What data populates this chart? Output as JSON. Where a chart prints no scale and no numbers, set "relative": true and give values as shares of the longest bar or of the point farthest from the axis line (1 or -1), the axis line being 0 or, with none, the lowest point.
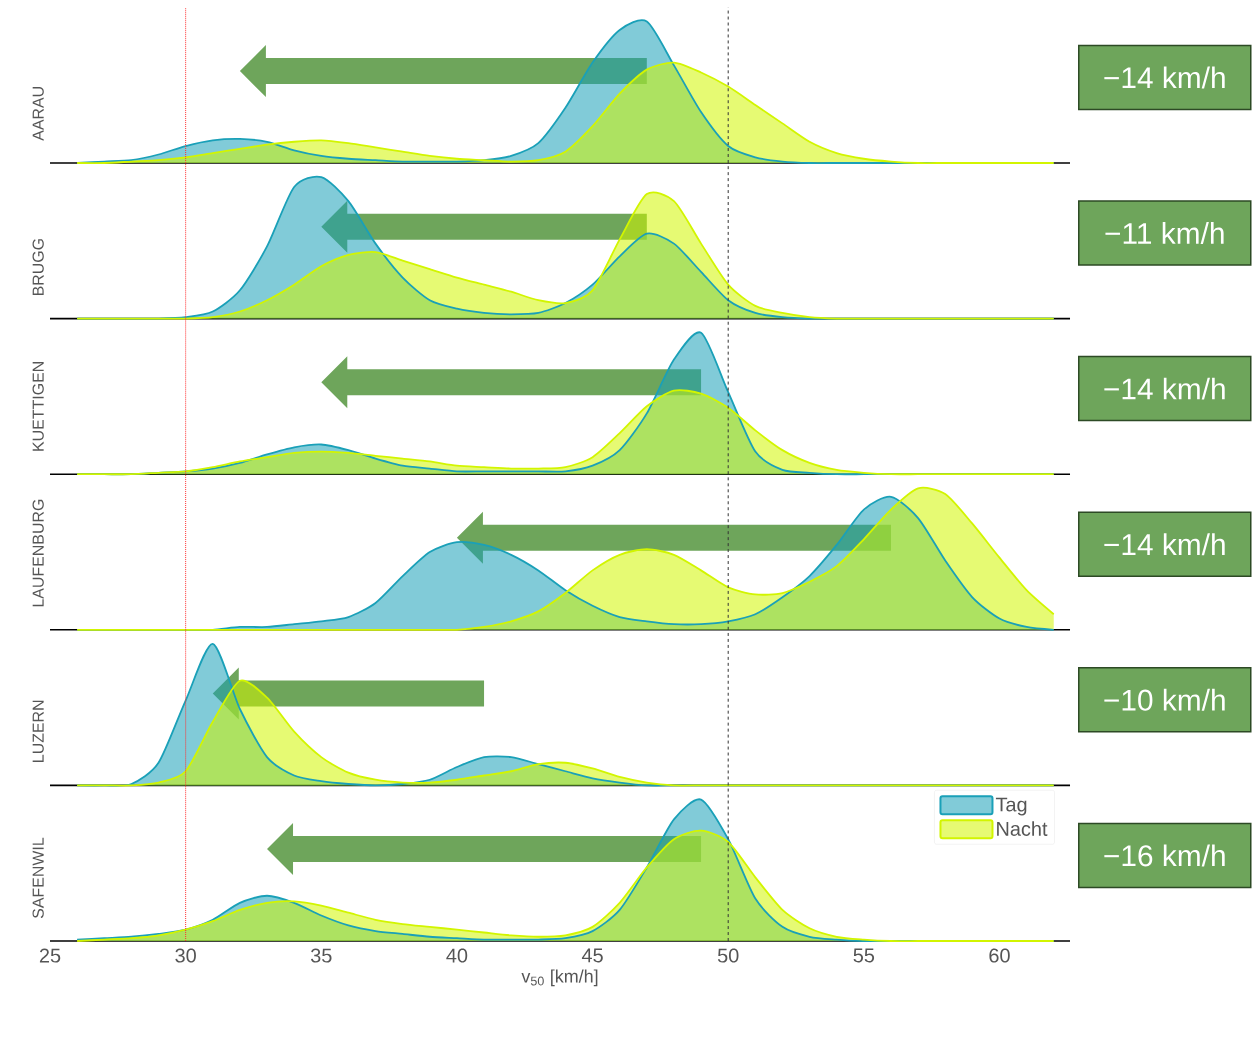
{
  "chart_data": [
    {
      "type": "area",
      "relative": true,
      "ylabel": "AARAU",
      "xlim": [
        25,
        62.6
      ],
      "tick_labels": false,
      "annotations": [
        "−14 km/h"
      ],
      "ref_lines": [
        {
          "axis": "x",
          "value": 30,
          "color": "#ff3030",
          "line_style": "dotted"
        },
        {
          "axis": "x",
          "value": 50,
          "color": "#333333",
          "line_style": "dashed"
        }
      ],
      "x": [
        26,
        27,
        28,
        29,
        30,
        31,
        32,
        33,
        34,
        35,
        36,
        37,
        38,
        39,
        40,
        41,
        42,
        43,
        44,
        45,
        46,
        47,
        48,
        49,
        50,
        51,
        52,
        53,
        54,
        55,
        56,
        57,
        58,
        59,
        60,
        61,
        62
      ],
      "series": [
        {
          "color": "#1aa0b8",
          "values": [
            0,
            0.01,
            0.02,
            0.06,
            0.12,
            0.16,
            0.17,
            0.15,
            0.09,
            0.05,
            0.03,
            0.02,
            0.01,
            0.01,
            0.01,
            0.02,
            0.05,
            0.14,
            0.39,
            0.71,
            0.94,
            1.0,
            0.69,
            0.36,
            0.12,
            0.04,
            0.01,
            0,
            0,
            0,
            0,
            0,
            0,
            0,
            0,
            0,
            0
          ]
        },
        {
          "color": "#d2f500",
          "values": [
            0,
            0,
            0.01,
            0.02,
            0.04,
            0.07,
            0.1,
            0.13,
            0.15,
            0.16,
            0.14,
            0.11,
            0.08,
            0.05,
            0.03,
            0.02,
            0.01,
            0.02,
            0.08,
            0.26,
            0.49,
            0.66,
            0.71,
            0.64,
            0.54,
            0.41,
            0.28,
            0.15,
            0.07,
            0.03,
            0.01,
            0,
            0,
            0,
            0,
            0,
            0
          ]
        }
      ]
    },
    {
      "type": "area",
      "relative": true,
      "ylabel": "BRUGG",
      "xlim": [
        25,
        62.6
      ],
      "tick_labels": false,
      "annotations": [
        "−11 km/h"
      ],
      "ref_lines": [
        {
          "axis": "x",
          "value": 30,
          "color": "#ff3030",
          "line_style": "dotted"
        },
        {
          "axis": "x",
          "value": 50,
          "color": "#333333",
          "line_style": "dashed"
        }
      ],
      "x": [
        26,
        27,
        28,
        29,
        30,
        31,
        32,
        33,
        34,
        35,
        36,
        37,
        38,
        39,
        40,
        41,
        42,
        43,
        44,
        45,
        46,
        47,
        48,
        49,
        50,
        51,
        52,
        53,
        54,
        55,
        56,
        57,
        58,
        59,
        60,
        61,
        62
      ],
      "series": [
        {
          "color": "#1aa0b8",
          "values": [
            0,
            0,
            0,
            0,
            0.01,
            0.05,
            0.2,
            0.51,
            0.93,
            1.0,
            0.83,
            0.53,
            0.29,
            0.13,
            0.07,
            0.04,
            0.03,
            0.04,
            0.11,
            0.24,
            0.44,
            0.6,
            0.53,
            0.33,
            0.13,
            0.04,
            0.01,
            0,
            0,
            0,
            0,
            0,
            0,
            0,
            0,
            0,
            0
          ]
        },
        {
          "color": "#d2f500",
          "values": [
            0,
            0,
            0,
            0,
            0,
            0.01,
            0.05,
            0.13,
            0.24,
            0.37,
            0.45,
            0.47,
            0.41,
            0.35,
            0.29,
            0.24,
            0.19,
            0.13,
            0.11,
            0.2,
            0.56,
            0.88,
            0.83,
            0.53,
            0.24,
            0.09,
            0.04,
            0.01,
            0,
            0,
            0,
            0,
            0,
            0,
            0,
            0,
            0
          ]
        }
      ]
    },
    {
      "type": "area",
      "relative": true,
      "ylabel": "KUETTIGEN",
      "xlim": [
        25,
        62.6
      ],
      "tick_labels": false,
      "annotations": [
        "−14 km/h"
      ],
      "ref_lines": [
        {
          "axis": "x",
          "value": 30,
          "color": "#ff3030",
          "line_style": "dotted"
        },
        {
          "axis": "x",
          "value": 50,
          "color": "#333333",
          "line_style": "dashed"
        }
      ],
      "x": [
        26,
        27,
        28,
        29,
        30,
        31,
        32,
        33,
        34,
        35,
        36,
        37,
        38,
        39,
        40,
        41,
        42,
        43,
        44,
        45,
        46,
        47,
        48,
        49,
        50,
        51,
        52,
        53,
        54,
        55,
        56,
        57,
        58,
        59,
        60,
        61,
        62
      ],
      "series": [
        {
          "color": "#1aa0b8",
          "values": [
            0,
            0,
            0,
            0.01,
            0.02,
            0.04,
            0.08,
            0.14,
            0.19,
            0.21,
            0.17,
            0.11,
            0.06,
            0.04,
            0.02,
            0.02,
            0.02,
            0.02,
            0.02,
            0.06,
            0.17,
            0.43,
            0.81,
            1.0,
            0.58,
            0.16,
            0.03,
            0.01,
            0,
            0,
            0,
            0,
            0,
            0,
            0,
            0,
            0
          ]
        },
        {
          "color": "#d2f500",
          "values": [
            0,
            0,
            0,
            0.01,
            0.02,
            0.05,
            0.09,
            0.12,
            0.15,
            0.16,
            0.15,
            0.13,
            0.11,
            0.09,
            0.06,
            0.05,
            0.04,
            0.04,
            0.05,
            0.12,
            0.29,
            0.48,
            0.59,
            0.57,
            0.47,
            0.31,
            0.17,
            0.08,
            0.03,
            0.01,
            0,
            0,
            0,
            0,
            0,
            0,
            0
          ]
        }
      ]
    },
    {
      "type": "area",
      "relative": true,
      "ylabel": "LAUFENBURG",
      "xlim": [
        25,
        62.6
      ],
      "tick_labels": false,
      "annotations": [
        "−14 km/h"
      ],
      "ref_lines": [
        {
          "axis": "x",
          "value": 30,
          "color": "#ff3030",
          "line_style": "dotted"
        },
        {
          "axis": "x",
          "value": 50,
          "color": "#333333",
          "line_style": "dashed"
        }
      ],
      "x": [
        26,
        27,
        28,
        29,
        30,
        31,
        32,
        33,
        34,
        35,
        36,
        37,
        38,
        39,
        40,
        41,
        42,
        43,
        44,
        45,
        46,
        47,
        48,
        49,
        50,
        51,
        52,
        53,
        54,
        55,
        56,
        57,
        58,
        59,
        60,
        61,
        62
      ],
      "series": [
        {
          "color": "#1aa0b8",
          "values": [
            0,
            0,
            0,
            0,
            0,
            0,
            0.02,
            0.02,
            0.04,
            0.06,
            0.09,
            0.19,
            0.38,
            0.55,
            0.62,
            0.6,
            0.53,
            0.42,
            0.28,
            0.17,
            0.09,
            0.06,
            0.04,
            0.04,
            0.06,
            0.11,
            0.23,
            0.38,
            0.6,
            0.85,
            0.94,
            0.79,
            0.49,
            0.23,
            0.08,
            0.02,
            0
          ]
        },
        {
          "color": "#d2f500",
          "values": [
            0,
            0,
            0,
            0,
            0,
            0,
            0,
            0,
            0,
            0,
            0,
            0,
            0,
            0,
            0,
            0.02,
            0.06,
            0.13,
            0.26,
            0.42,
            0.53,
            0.57,
            0.53,
            0.42,
            0.3,
            0.25,
            0.26,
            0.34,
            0.45,
            0.64,
            0.85,
            1.0,
            0.96,
            0.75,
            0.51,
            0.28,
            0.11
          ]
        }
      ]
    },
    {
      "type": "area",
      "relative": true,
      "ylabel": "LUZERN",
      "xlim": [
        25,
        62.6
      ],
      "tick_labels": false,
      "annotations": [
        "−10 km/h"
      ],
      "ref_lines": [
        {
          "axis": "x",
          "value": 30,
          "color": "#ff3030",
          "line_style": "dotted"
        },
        {
          "axis": "x",
          "value": 50,
          "color": "#333333",
          "line_style": "dashed"
        }
      ],
      "x": [
        26,
        27,
        28,
        29,
        30,
        31,
        32,
        33,
        34,
        35,
        36,
        37,
        38,
        39,
        40,
        41,
        42,
        43,
        44,
        45,
        46,
        47,
        48,
        49,
        50,
        51,
        52,
        53,
        54,
        55,
        56,
        57,
        58,
        59,
        60,
        61,
        62
      ],
      "series": [
        {
          "color": "#1aa0b8",
          "values": [
            0,
            0,
            0.01,
            0.16,
            0.6,
            1.0,
            0.54,
            0.2,
            0.07,
            0.03,
            0.01,
            0,
            0.01,
            0.04,
            0.13,
            0.2,
            0.2,
            0.15,
            0.1,
            0.05,
            0.02,
            0,
            0,
            0,
            0,
            0,
            0,
            0,
            0,
            0,
            0,
            0,
            0,
            0,
            0,
            0,
            0
          ]
        },
        {
          "color": "#d2f500",
          "values": [
            0,
            0,
            0,
            0.02,
            0.1,
            0.45,
            0.74,
            0.62,
            0.38,
            0.2,
            0.09,
            0.04,
            0.02,
            0.02,
            0.04,
            0.07,
            0.1,
            0.15,
            0.16,
            0.12,
            0.06,
            0.02,
            0,
            0,
            0,
            0,
            0,
            0,
            0,
            0,
            0,
            0,
            0,
            0,
            0,
            0,
            0
          ]
        }
      ]
    },
    {
      "type": "area",
      "relative": true,
      "ylabel": "SAFENWIL",
      "xlim": [
        25,
        62.6
      ],
      "xticks": [
        25,
        30,
        35,
        40,
        45,
        50,
        55,
        60
      ],
      "tick_labels": "x",
      "xlabel": "v$_{50}$ [km/h]",
      "legend": "top right",
      "annotations": [
        "−16 km/h"
      ],
      "ref_lines": [
        {
          "axis": "x",
          "value": 30,
          "color": "#ff3030",
          "line_style": "dotted"
        },
        {
          "axis": "x",
          "value": 50,
          "color": "#333333",
          "line_style": "dashed"
        }
      ],
      "x": [
        26,
        27,
        28,
        29,
        30,
        31,
        32,
        33,
        34,
        35,
        36,
        37,
        38,
        39,
        40,
        41,
        42,
        43,
        44,
        45,
        46,
        47,
        48,
        49,
        50,
        51,
        52,
        53,
        54,
        55,
        56,
        57,
        58,
        59,
        60,
        61,
        62
      ],
      "series": [
        {
          "name": "Tag",
          "color": "#1aa0b8",
          "values": [
            0.01,
            0.02,
            0.03,
            0.05,
            0.08,
            0.15,
            0.27,
            0.32,
            0.27,
            0.18,
            0.11,
            0.07,
            0.05,
            0.03,
            0.02,
            0.01,
            0.01,
            0.01,
            0.02,
            0.07,
            0.22,
            0.52,
            0.86,
            1.0,
            0.72,
            0.3,
            0.1,
            0.03,
            0.01,
            0,
            0,
            0,
            0,
            0,
            0,
            0,
            0
          ]
        },
        {
          "name": "Nacht",
          "color": "#d2f500",
          "values": [
            0,
            0.01,
            0.02,
            0.04,
            0.08,
            0.14,
            0.22,
            0.27,
            0.28,
            0.25,
            0.2,
            0.15,
            0.12,
            0.1,
            0.08,
            0.06,
            0.04,
            0.03,
            0.04,
            0.1,
            0.27,
            0.52,
            0.72,
            0.78,
            0.7,
            0.45,
            0.22,
            0.09,
            0.03,
            0.01,
            0,
            0,
            0,
            0,
            0,
            0,
            0
          ]
        }
      ]
    }
  ]
}
